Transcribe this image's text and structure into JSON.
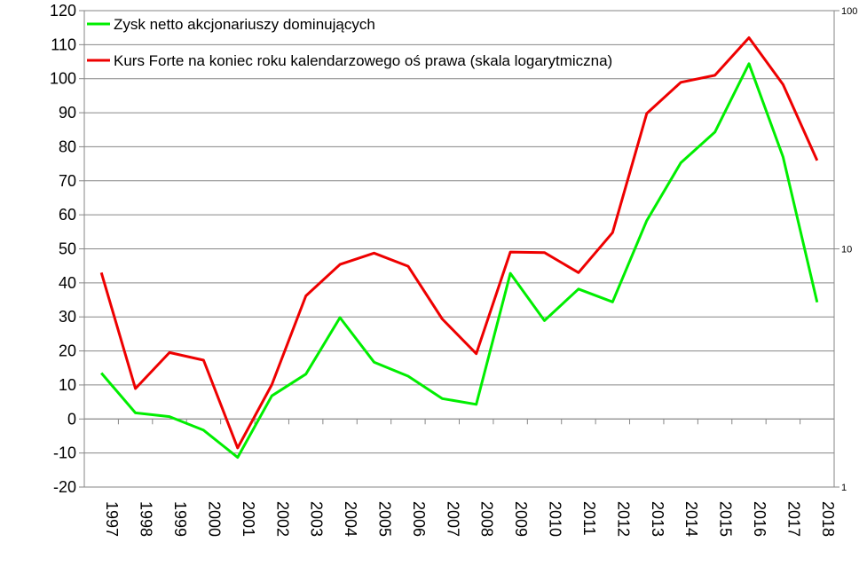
{
  "chart_data": {
    "type": "line",
    "x": [
      "1997",
      "1998",
      "1999",
      "2000",
      "2001",
      "2002",
      "2003",
      "2004",
      "2005",
      "2006",
      "2007",
      "2008",
      "2009",
      "2010",
      "2011",
      "2012",
      "2013",
      "2014",
      "2015",
      "2016",
      "2017",
      "2018"
    ],
    "y_left": {
      "lim": [
        -20,
        120
      ],
      "ticks": [
        "-20",
        "-10",
        "0",
        "10",
        "20",
        "30",
        "40",
        "50",
        "60",
        "70",
        "80",
        "90",
        "100",
        "110",
        "120"
      ],
      "grid": true
    },
    "y_right": {
      "scale": "log",
      "lim": [
        1,
        100
      ],
      "ticks": [
        "1",
        "10",
        "100"
      ]
    },
    "legend_position": "top-left",
    "series": [
      {
        "name": "Zysk netto akcjonariuszy dominujących",
        "color": "#00ee00",
        "axis": "left",
        "values": [
          13.5,
          1.8,
          0.7,
          -3.3,
          -11.3,
          6.8,
          13.2,
          29.8,
          16.7,
          12.6,
          6.0,
          4.3,
          42.8,
          28.9,
          38.2,
          34.4,
          58.3,
          75.3,
          84.3,
          104.4,
          77.0,
          34.3
        ]
      },
      {
        "name": "Kurs Forte na koniec roku kalendarzowego oś prawa (skala logarytmiczna)",
        "color": "#ee0000",
        "axis": "right",
        "values": [
          7.95,
          2.59,
          3.67,
          3.41,
          1.46,
          2.69,
          6.35,
          8.6,
          9.6,
          8.45,
          5.08,
          3.63,
          9.7,
          9.65,
          7.95,
          11.7,
          37.0,
          50.0,
          53.5,
          77.0,
          49.0,
          23.5
        ]
      }
    ]
  }
}
